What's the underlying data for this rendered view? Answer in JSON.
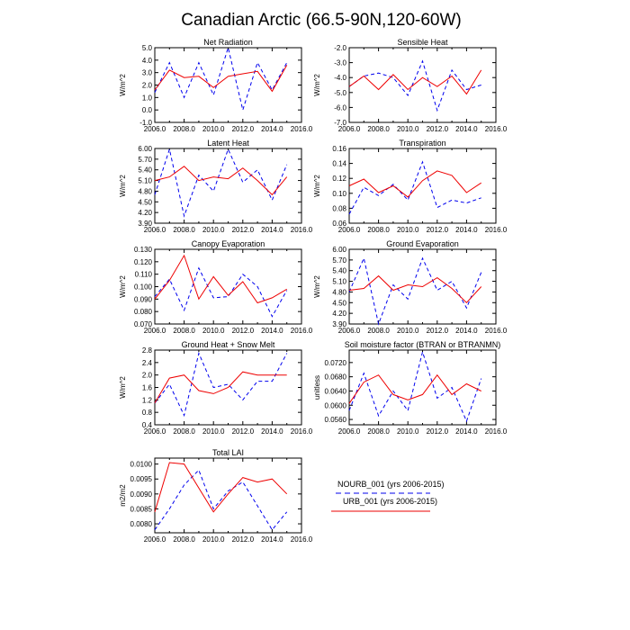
{
  "title": "Canadian Arctic (66.5-90N,120-60W)",
  "legend": {
    "placement": "bottom-right",
    "entries": [
      {
        "name": "NOURB_001 (yrs 2006-2015)",
        "color": "#0000ee",
        "style": "dashed"
      },
      {
        "name": "URB_001 (yrs 2006-2015)",
        "color": "#ee0000",
        "style": "solid"
      }
    ]
  },
  "chart_data": [
    {
      "id": "net-radiation",
      "type": "line",
      "title": "Net Radiation",
      "xlabel": "",
      "ylabel": "W/m^2",
      "xlim": [
        2006,
        2016
      ],
      "ylim": [
        -1.0,
        5.0
      ],
      "xticks": [
        "2006.0",
        "2008.0",
        "2010.0",
        "2012.0",
        "2014.0",
        "2016.0"
      ],
      "yticks": [
        "-1.0",
        "0.0",
        "1.0",
        "2.0",
        "3.0",
        "4.0",
        "5.0"
      ],
      "x": [
        2006,
        2007,
        2008,
        2009,
        2010,
        2011,
        2012,
        2013,
        2014,
        2015
      ],
      "series": [
        {
          "name": "NOURB_001 (yrs 2006-2015)",
          "values": [
            1.4,
            3.8,
            1.0,
            3.8,
            1.2,
            5.0,
            0.0,
            3.8,
            1.6,
            3.8
          ]
        },
        {
          "name": "URB_001 (yrs 2006-2015)",
          "values": [
            1.6,
            3.2,
            2.6,
            2.7,
            1.8,
            2.7,
            2.9,
            3.1,
            1.5,
            3.6
          ]
        }
      ]
    },
    {
      "id": "sensible-heat",
      "type": "line",
      "title": "Sensible Heat",
      "xlabel": "",
      "ylabel": "W/m^2",
      "xlim": [
        2006,
        2016
      ],
      "ylim": [
        -7.0,
        -2.0
      ],
      "xticks": [
        "2006.0",
        "2008.0",
        "2010.0",
        "2012.0",
        "2014.0",
        "2016.0"
      ],
      "yticks": [
        "-7.0",
        "-6.0",
        "-5.0",
        "-4.0",
        "-3.0",
        "-2.0"
      ],
      "x": [
        2006,
        2007,
        2008,
        2009,
        2010,
        2011,
        2012,
        2013,
        2014,
        2015
      ],
      "series": [
        {
          "name": "NOURB_001 (yrs 2006-2015)",
          "values": [
            -4.6,
            -3.9,
            -3.7,
            -4.0,
            -5.2,
            -2.9,
            -6.2,
            -3.5,
            -4.8,
            -4.5
          ]
        },
        {
          "name": "URB_001 (yrs 2006-2015)",
          "values": [
            -4.6,
            -3.9,
            -4.8,
            -3.8,
            -4.8,
            -4.0,
            -4.6,
            -3.9,
            -5.1,
            -3.5
          ]
        }
      ]
    },
    {
      "id": "latent-heat",
      "type": "line",
      "title": "Latent Heat",
      "xlabel": "",
      "ylabel": "W/m^2",
      "xlim": [
        2006,
        2016
      ],
      "ylim": [
        3.9,
        6.0
      ],
      "xticks": [
        "2006.0",
        "2008.0",
        "2010.0",
        "2012.0",
        "2014.0",
        "2016.0"
      ],
      "yticks": [
        "3.90",
        "4.20",
        "4.50",
        "4.80",
        "5.10",
        "5.40",
        "5.70",
        "6.00"
      ],
      "x": [
        2006,
        2007,
        2008,
        2009,
        2010,
        2011,
        2012,
        2013,
        2014,
        2015
      ],
      "series": [
        {
          "name": "NOURB_001 (yrs 2006-2015)",
          "values": [
            4.7,
            5.98,
            4.1,
            5.25,
            4.8,
            5.98,
            5.05,
            5.4,
            4.55,
            5.55
          ]
        },
        {
          "name": "URB_001 (yrs 2006-2015)",
          "values": [
            5.1,
            5.2,
            5.5,
            5.1,
            5.2,
            5.15,
            5.45,
            5.1,
            4.7,
            5.2
          ]
        }
      ]
    },
    {
      "id": "transpiration",
      "type": "line",
      "title": "Transpiration",
      "xlabel": "",
      "ylabel": "W/m^2",
      "xlim": [
        2006,
        2016
      ],
      "ylim": [
        0.06,
        0.16
      ],
      "xticks": [
        "2006.0",
        "2008.0",
        "2010.0",
        "2012.0",
        "2014.0",
        "2016.0"
      ],
      "yticks": [
        "0.06",
        "0.08",
        "0.10",
        "0.12",
        "0.14",
        "0.16"
      ],
      "x": [
        2006,
        2007,
        2008,
        2009,
        2010,
        2011,
        2012,
        2013,
        2014,
        2015
      ],
      "series": [
        {
          "name": "NOURB_001 (yrs 2006-2015)",
          "values": [
            0.072,
            0.108,
            0.097,
            0.112,
            0.091,
            0.142,
            0.081,
            0.091,
            0.087,
            0.094
          ]
        },
        {
          "name": "URB_001 (yrs 2006-2015)",
          "values": [
            0.11,
            0.119,
            0.101,
            0.11,
            0.095,
            0.117,
            0.13,
            0.124,
            0.101,
            0.114
          ]
        }
      ]
    },
    {
      "id": "canopy-evaporation",
      "type": "line",
      "title": "Canopy Evaporation",
      "xlabel": "",
      "ylabel": "W/m^2",
      "xlim": [
        2006,
        2016
      ],
      "ylim": [
        0.07,
        0.13
      ],
      "xticks": [
        "2006.0",
        "2008.0",
        "2010.0",
        "2012.0",
        "2014.0",
        "2016.0"
      ],
      "yticks": [
        "0.070",
        "0.080",
        "0.090",
        "0.100",
        "0.110",
        "0.120",
        "0.130"
      ],
      "x": [
        2006,
        2007,
        2008,
        2009,
        2010,
        2011,
        2012,
        2013,
        2014,
        2015
      ],
      "series": [
        {
          "name": "NOURB_001 (yrs 2006-2015)",
          "values": [
            0.092,
            0.106,
            0.081,
            0.115,
            0.091,
            0.092,
            0.11,
            0.1,
            0.076,
            0.097
          ]
        },
        {
          "name": "URB_001 (yrs 2006-2015)",
          "values": [
            0.09,
            0.105,
            0.125,
            0.09,
            0.108,
            0.093,
            0.104,
            0.087,
            0.091,
            0.098
          ]
        }
      ]
    },
    {
      "id": "ground-evaporation",
      "type": "line",
      "title": "Ground Evaporation",
      "xlabel": "",
      "ylabel": "W/m^2",
      "xlim": [
        2006,
        2016
      ],
      "ylim": [
        3.9,
        6.0
      ],
      "xticks": [
        "2006.0",
        "2008.0",
        "2010.0",
        "2012.0",
        "2014.0",
        "2016.0"
      ],
      "yticks": [
        "3.90",
        "4.20",
        "4.50",
        "4.80",
        "5.10",
        "5.40",
        "5.70",
        "6.00"
      ],
      "x": [
        2006,
        2007,
        2008,
        2009,
        2010,
        2011,
        2012,
        2013,
        2014,
        2015
      ],
      "series": [
        {
          "name": "NOURB_001 (yrs 2006-2015)",
          "values": [
            4.8,
            5.75,
            3.9,
            5.0,
            4.6,
            5.75,
            4.85,
            5.1,
            4.35,
            5.35
          ]
        },
        {
          "name": "URB_001 (yrs 2006-2015)",
          "values": [
            4.85,
            4.9,
            5.25,
            4.85,
            5.0,
            4.95,
            5.2,
            4.9,
            4.5,
            4.95
          ]
        }
      ]
    },
    {
      "id": "ground-heat-snow-melt",
      "type": "line",
      "title": "Ground Heat + Snow Melt",
      "xlabel": "",
      "ylabel": "W/m^2",
      "xlim": [
        2006,
        2016
      ],
      "ylim": [
        0.4,
        2.8
      ],
      "xticks": [
        "2006.0",
        "2008.0",
        "2010.0",
        "2012.0",
        "2014.0",
        "2016.0"
      ],
      "yticks": [
        "0.4",
        "0.8",
        "1.2",
        "1.6",
        "2.0",
        "2.4",
        "2.8"
      ],
      "x": [
        2006,
        2007,
        2008,
        2009,
        2010,
        2011,
        2012,
        2013,
        2014,
        2015
      ],
      "series": [
        {
          "name": "NOURB_001 (yrs 2006-2015)",
          "values": [
            1.1,
            1.7,
            0.7,
            2.7,
            1.6,
            1.7,
            1.2,
            1.8,
            1.8,
            2.7
          ]
        },
        {
          "name": "URB_001 (yrs 2006-2015)",
          "values": [
            1.1,
            1.9,
            2.0,
            1.5,
            1.4,
            1.6,
            2.1,
            2.0,
            2.0,
            2.0
          ]
        }
      ]
    },
    {
      "id": "soil-moisture-factor",
      "type": "line",
      "title": "Soil moisture factor (BTRAN or BTRANMN)",
      "xlabel": "",
      "ylabel": "unitless",
      "xlim": [
        2006,
        2016
      ],
      "ylim": [
        0.0545,
        0.0755
      ],
      "xticks": [
        "2006.0",
        "2008.0",
        "2010.0",
        "2012.0",
        "2014.0",
        "2016.0"
      ],
      "yticks": [
        "0.0560",
        "0.0600",
        "0.0640",
        "0.0680",
        "0.0720"
      ],
      "x": [
        2006,
        2007,
        2008,
        2009,
        2010,
        2011,
        2012,
        2013,
        2014,
        2015
      ],
      "series": [
        {
          "name": "NOURB_001 (yrs 2006-2015)",
          "values": [
            0.0585,
            0.069,
            0.057,
            0.064,
            0.0585,
            0.075,
            0.062,
            0.065,
            0.0555,
            0.0675
          ]
        },
        {
          "name": "URB_001 (yrs 2006-2015)",
          "values": [
            0.0605,
            0.0665,
            0.0685,
            0.063,
            0.0615,
            0.063,
            0.0685,
            0.063,
            0.066,
            0.064
          ]
        }
      ]
    },
    {
      "id": "total-lai",
      "type": "line",
      "title": "Total LAI",
      "xlabel": "",
      "ylabel": "m2/m2",
      "xlim": [
        2006,
        2016
      ],
      "ylim": [
        0.0077,
        0.0102
      ],
      "xticks": [
        "2006.0",
        "2008.0",
        "2010.0",
        "2012.0",
        "2014.0",
        "2016.0"
      ],
      "yticks": [
        "0.0080",
        "0.0085",
        "0.0090",
        "0.0095",
        "0.0100"
      ],
      "x": [
        2006,
        2007,
        2008,
        2009,
        2010,
        2011,
        2012,
        2013,
        2014,
        2015
      ],
      "series": [
        {
          "name": "NOURB_001 (yrs 2006-2015)",
          "values": [
            0.0078,
            0.0085,
            0.0093,
            0.0098,
            0.0085,
            0.0091,
            0.0094,
            0.0086,
            0.0078,
            0.0084
          ]
        },
        {
          "name": "URB_001 (yrs 2006-2015)",
          "values": [
            0.0084,
            0.01005,
            0.01,
            0.0092,
            0.0084,
            0.009,
            0.00955,
            0.0094,
            0.0095,
            0.009
          ]
        }
      ]
    }
  ]
}
